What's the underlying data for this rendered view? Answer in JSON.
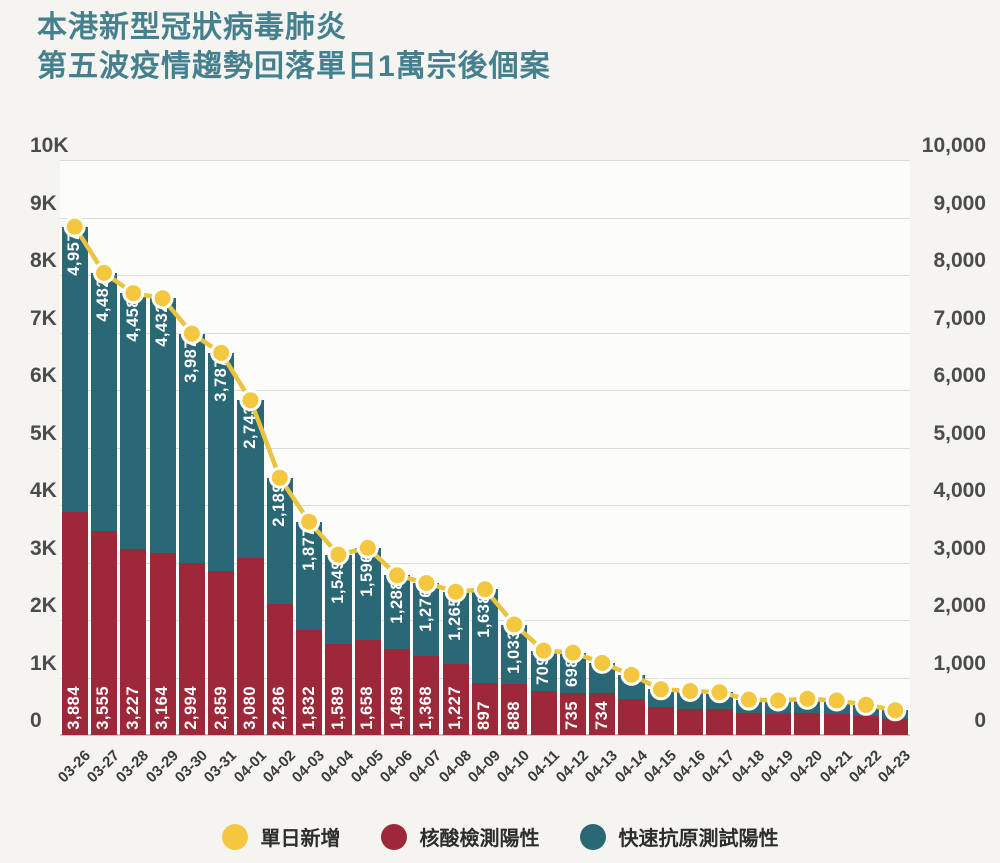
{
  "title": {
    "line1": "本港新型冠狀病毒肺炎",
    "line2": "第五波疫情趨勢回落單日1萬宗後個案"
  },
  "colors": {
    "title": "#44808d",
    "page_bg": "#f5f4f1",
    "plot_bg": "#fcfcfb",
    "grid": "#dcdbd7",
    "axis_line": "#c6c5c1",
    "axis_text": "#4c4c4c",
    "date_text": "#3a3a3a",
    "bar_red": "#9c2839",
    "bar_teal": "#2a6876",
    "line_yellow": "#e8c441",
    "dot_yellow": "#f3c73f",
    "dot_ring": "#ffffff",
    "bar_label": "#ffffff",
    "legend_text": "#2d2d2d"
  },
  "y_axis_left": {
    "labels": [
      "10K",
      "9K",
      "8K",
      "7K",
      "6K",
      "5K",
      "4K",
      "3K",
      "2K",
      "1K",
      "0"
    ]
  },
  "y_axis_right": {
    "labels": [
      "10,000",
      "9,000",
      "8,000",
      "7,000",
      "6,000",
      "5,000",
      "4,000",
      "3,000",
      "2,000",
      "1,000",
      "0"
    ]
  },
  "legend": {
    "items": [
      {
        "name": "daily-new",
        "label": "單日新增",
        "color": "#f3c73f"
      },
      {
        "name": "nucleic-acid-positive",
        "label": "核酸檢測陽性",
        "color": "#9c2839"
      },
      {
        "name": "rapid-antigen-positive",
        "label": "快速抗原測試陽性",
        "color": "#2a6876"
      }
    ]
  },
  "chart_data": {
    "type": "bar",
    "stacked": true,
    "line_overlay": true,
    "title": "本港新型冠狀病毒肺炎 第五波疫情趨勢回落單日1萬宗後個案",
    "xlabel": "",
    "ylabel": "",
    "ylim": [
      0,
      10000
    ],
    "grid": true,
    "legend_position": "bottom",
    "categories": [
      "03-26",
      "03-27",
      "03-28",
      "03-29",
      "03-30",
      "03-31",
      "04-01",
      "04-02",
      "04-03",
      "04-04",
      "04-05",
      "04-06",
      "04-07",
      "04-08",
      "04-09",
      "04-10",
      "04-11",
      "04-12",
      "04-13",
      "04-14",
      "04-15",
      "04-16",
      "04-17",
      "04-18",
      "04-19",
      "04-20",
      "04-21",
      "04-22",
      "04-23"
    ],
    "series": [
      {
        "name": "核酸檢測陽性",
        "role": "bar-bottom",
        "color": "#9c2839",
        "values": [
          3884,
          3555,
          3227,
          3164,
          2994,
          2859,
          3080,
          2286,
          1832,
          1589,
          1658,
          1489,
          1368,
          1227,
          897,
          888,
          758,
          735,
          734,
          620,
          480,
          460,
          450,
          380,
          370,
          390,
          365,
          330,
          270
        ],
        "labels": [
          "3,884",
          "3,555",
          "3,227",
          "3,164",
          "2,994",
          "2,859",
          "3,080",
          "2,286",
          "1,832",
          "1,589",
          "1,658",
          "1,489",
          "1,368",
          "1,227",
          "897",
          "888",
          "",
          "735",
          "734",
          "",
          "",
          "",
          "",
          "",
          "",
          "",
          "",
          "",
          ""
        ]
      },
      {
        "name": "快速抗原測試陽性",
        "role": "bar-top",
        "color": "#2a6876",
        "values": [
          4957,
          4482,
          4458,
          4432,
          3987,
          3787,
          2743,
          2189,
          1877,
          1549,
          1596,
          1288,
          1276,
          1265,
          1638,
          1033,
          709,
          698,
          520,
          425,
          315,
          305,
          295,
          235,
          230,
          240,
          235,
          195,
          160
        ],
        "labels": [
          "4,957",
          "4,482",
          "4,458",
          "4,432",
          "3,987",
          "3,787",
          "2,743",
          "2,189",
          "1,877",
          "1,549",
          "1,596",
          "1,288",
          "1,276",
          "1,265",
          "1,638",
          "1,033",
          "709",
          "698",
          "",
          "",
          "",
          "",
          "",
          "",
          "",
          "",
          "",
          "",
          ""
        ]
      },
      {
        "name": "單日新增",
        "role": "line",
        "color": "#f3c73f",
        "values": [
          8841,
          8037,
          7685,
          7596,
          6981,
          6646,
          5823,
          4475,
          3709,
          3138,
          3254,
          2777,
          2644,
          2492,
          2535,
          1921,
          1467,
          1433,
          1254,
          1045,
          795,
          765,
          745,
          615,
          600,
          630,
          600,
          525,
          430
        ]
      }
    ]
  }
}
